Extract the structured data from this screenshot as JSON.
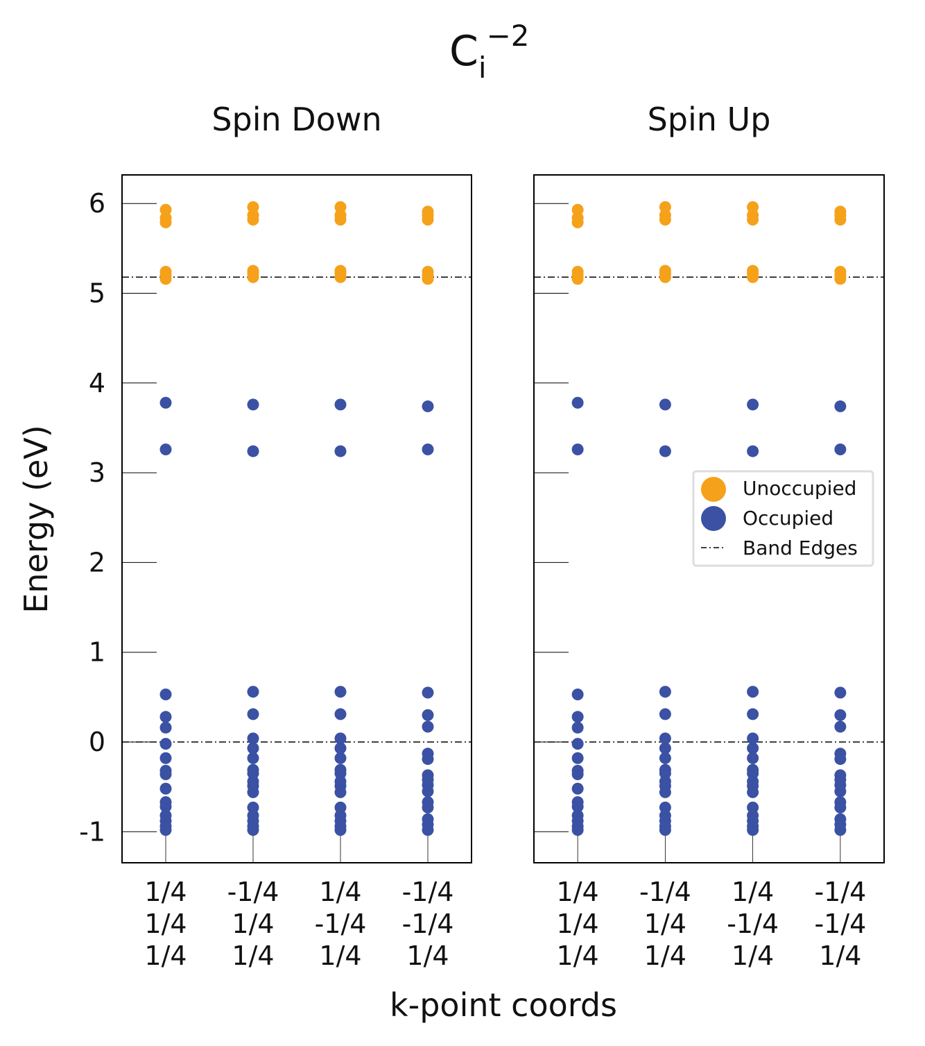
{
  "figure": {
    "title": "C",
    "title_sub": "i",
    "title_sup": "−2"
  },
  "chart_data": {
    "type": "scatter",
    "ylabel": "Energy (eV)",
    "xlabel": "k-point coords",
    "ylim": [
      -1.35,
      6.33
    ],
    "yticks": [
      -1,
      0,
      1,
      2,
      3,
      4,
      5,
      6
    ],
    "ytick_labels": [
      "-1",
      "0",
      "1",
      "2",
      "3",
      "4",
      "5",
      "6"
    ],
    "grid": false,
    "band_edges": [
      0.0,
      5.18
    ],
    "kpoints": [
      [
        "1/4",
        "1/4",
        "1/4"
      ],
      [
        "-1/4",
        "1/4",
        "1/4"
      ],
      [
        "1/4",
        "-1/4",
        "1/4"
      ],
      [
        "-1/4",
        "-1/4",
        "1/4"
      ]
    ],
    "colors": {
      "Unoccupied": "#f5a11a",
      "Occupied": "#3b51a3"
    },
    "legend": {
      "placement": "center-right of Spin Up panel",
      "entries": [
        "Unoccupied",
        "Occupied",
        "Band Edges"
      ]
    },
    "panels": [
      {
        "title": "Spin Down",
        "kpoint_levels": [
          {
            "occupied": [
              -0.98,
              -0.94,
              -0.88,
              -0.82,
              -0.72,
              -0.67,
              -0.52,
              -0.36,
              -0.32,
              -0.18,
              -0.02,
              0.16,
              0.28,
              0.53,
              3.26,
              3.78
            ],
            "unoccupied": [
              5.16,
              5.2,
              5.24,
              5.79,
              5.84,
              5.93
            ]
          },
          {
            "occupied": [
              -0.98,
              -0.94,
              -0.88,
              -0.82,
              -0.73,
              -0.56,
              -0.49,
              -0.44,
              -0.35,
              -0.31,
              -0.18,
              -0.07,
              0.04,
              0.31,
              0.56,
              3.24,
              3.76
            ],
            "unoccupied": [
              5.18,
              5.22,
              5.25,
              5.82,
              5.87,
              5.96
            ]
          },
          {
            "occupied": [
              -0.98,
              -0.94,
              -0.88,
              -0.82,
              -0.73,
              -0.56,
              -0.49,
              -0.44,
              -0.35,
              -0.31,
              -0.18,
              -0.07,
              0.04,
              0.31,
              0.56,
              3.24,
              3.76
            ],
            "unoccupied": [
              5.18,
              5.22,
              5.25,
              5.82,
              5.87,
              5.96
            ]
          },
          {
            "occupied": [
              -0.98,
              -0.92,
              -0.86,
              -0.73,
              -0.67,
              -0.55,
              -0.48,
              -0.42,
              -0.37,
              -0.19,
              -0.13,
              0.17,
              0.3,
              0.55,
              3.26,
              3.74
            ],
            "unoccupied": [
              5.16,
              5.2,
              5.24,
              5.82,
              5.87,
              5.91
            ]
          }
        ]
      },
      {
        "title": "Spin Up",
        "kpoint_levels": [
          {
            "occupied": [
              -0.98,
              -0.94,
              -0.88,
              -0.82,
              -0.72,
              -0.67,
              -0.52,
              -0.36,
              -0.32,
              -0.18,
              -0.02,
              0.16,
              0.28,
              0.53,
              3.26,
              3.78
            ],
            "unoccupied": [
              5.16,
              5.2,
              5.24,
              5.79,
              5.84,
              5.93
            ]
          },
          {
            "occupied": [
              -0.98,
              -0.94,
              -0.88,
              -0.82,
              -0.73,
              -0.56,
              -0.49,
              -0.44,
              -0.35,
              -0.31,
              -0.18,
              -0.07,
              0.04,
              0.31,
              0.56,
              3.24,
              3.76
            ],
            "unoccupied": [
              5.18,
              5.22,
              5.25,
              5.82,
              5.87,
              5.96
            ]
          },
          {
            "occupied": [
              -0.98,
              -0.94,
              -0.88,
              -0.82,
              -0.73,
              -0.56,
              -0.49,
              -0.44,
              -0.35,
              -0.31,
              -0.18,
              -0.07,
              0.04,
              0.31,
              0.56,
              3.24,
              3.76
            ],
            "unoccupied": [
              5.18,
              5.22,
              5.25,
              5.82,
              5.87,
              5.96
            ]
          },
          {
            "occupied": [
              -0.98,
              -0.92,
              -0.86,
              -0.73,
              -0.67,
              -0.55,
              -0.48,
              -0.42,
              -0.37,
              -0.19,
              -0.13,
              0.17,
              0.3,
              0.55,
              3.26,
              3.74
            ],
            "unoccupied": [
              5.16,
              5.2,
              5.24,
              5.82,
              5.87,
              5.91
            ]
          }
        ]
      }
    ]
  }
}
